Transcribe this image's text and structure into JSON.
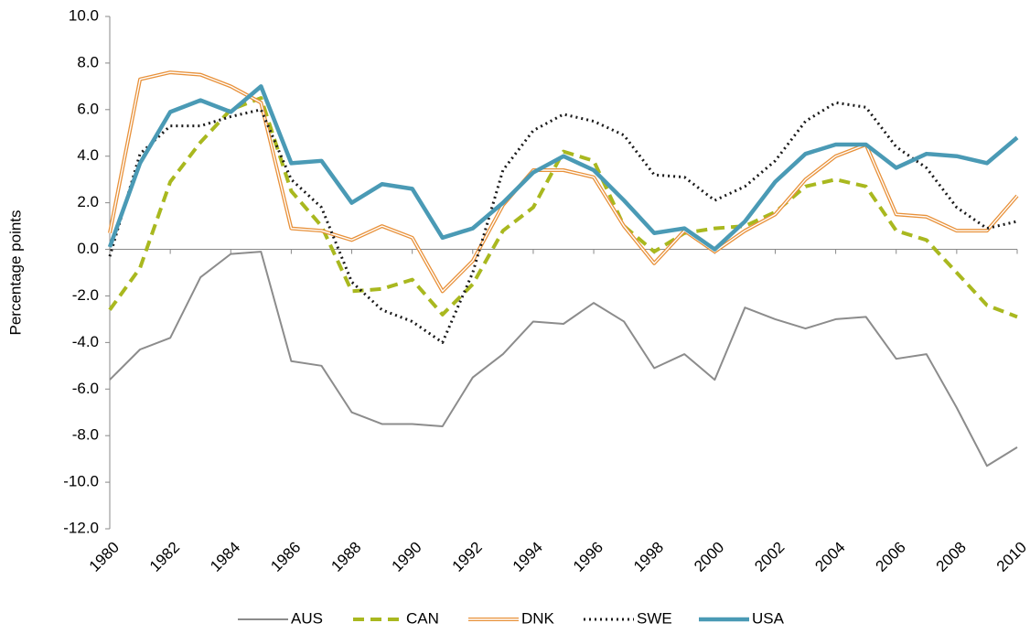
{
  "chart_data": {
    "type": "line",
    "y_label": "Percentage points",
    "x": [
      1980,
      1981,
      1982,
      1983,
      1984,
      1985,
      1986,
      1987,
      1988,
      1989,
      1990,
      1991,
      1992,
      1993,
      1994,
      1995,
      1996,
      1997,
      1998,
      1999,
      2000,
      2001,
      2002,
      2003,
      2004,
      2005,
      2006,
      2007,
      2008,
      2009,
      2010
    ],
    "xlim": [
      1980,
      2010
    ],
    "xticks": [
      1980,
      1982,
      1984,
      1986,
      1988,
      1990,
      1992,
      1994,
      1996,
      1998,
      2000,
      2002,
      2004,
      2006,
      2008,
      2010
    ],
    "ylim": [
      -12,
      10
    ],
    "yticks": [
      {
        "value": -12,
        "label": "-12.0"
      },
      {
        "value": -10,
        "label": "-10.0"
      },
      {
        "value": -8,
        "label": "-8.0"
      },
      {
        "value": -6,
        "label": "-6.0"
      },
      {
        "value": -4,
        "label": "-4.0"
      },
      {
        "value": -2,
        "label": "-2.0"
      },
      {
        "value": 0,
        "label": "0.0"
      },
      {
        "value": 2,
        "label": "2.0"
      },
      {
        "value": 4,
        "label": "4.0"
      },
      {
        "value": 6,
        "label": "6.0"
      },
      {
        "value": 8,
        "label": "8.0"
      },
      {
        "value": 10,
        "label": "10.0"
      }
    ],
    "legend": "bottom",
    "series": [
      {
        "name": "AUS",
        "color": "#8c8c8c",
        "style": "solid",
        "values": [
          -5.6,
          -4.3,
          -3.8,
          -1.2,
          -0.2,
          -0.1,
          -4.8,
          -5.0,
          -7.0,
          -7.5,
          -7.5,
          -7.6,
          -5.5,
          -4.5,
          -3.1,
          -3.2,
          -2.3,
          -3.1,
          -5.1,
          -4.5,
          -5.6,
          -2.5,
          -3.0,
          -3.4,
          -3.0,
          -2.9,
          -4.7,
          -4.5,
          -6.8,
          -9.3,
          -8.5
        ]
      },
      {
        "name": "CAN",
        "color": "#a9b81f",
        "style": "dashed",
        "values": [
          -2.6,
          -0.8,
          2.9,
          4.6,
          6.0,
          6.5,
          2.5,
          1.0,
          -1.8,
          -1.7,
          -1.3,
          -2.8,
          -1.5,
          0.8,
          1.8,
          4.2,
          3.8,
          1.0,
          -0.1,
          0.7,
          0.9,
          1.0,
          1.6,
          2.7,
          3.0,
          2.7,
          0.8,
          0.4,
          -1.0,
          -2.4,
          -2.9
        ]
      },
      {
        "name": "DNK",
        "color": "#e8913a",
        "style": "double",
        "values": [
          0.7,
          7.3,
          7.6,
          7.5,
          7.0,
          6.3,
          0.9,
          0.8,
          0.4,
          1.0,
          0.5,
          -1.8,
          -0.5,
          1.9,
          3.4,
          3.4,
          3.1,
          1.0,
          -0.6,
          0.8,
          -0.1,
          0.8,
          1.5,
          3.0,
          4.0,
          4.5,
          1.5,
          1.4,
          0.8,
          0.8,
          2.3
        ]
      },
      {
        "name": "SWE",
        "color": "#1a1a1a",
        "style": "dotted",
        "values": [
          -0.3,
          4.1,
          5.3,
          5.3,
          5.7,
          6.0,
          3.0,
          1.8,
          -1.4,
          -2.6,
          -3.1,
          -4.0,
          -1.0,
          3.4,
          5.1,
          5.8,
          5.5,
          4.9,
          3.2,
          3.1,
          2.1,
          2.7,
          3.8,
          5.5,
          6.3,
          6.1,
          4.4,
          3.5,
          1.8,
          0.9,
          1.2
        ]
      },
      {
        "name": "USA",
        "color": "#4a9ab5",
        "style": "thick",
        "values": [
          0.1,
          3.7,
          5.9,
          6.4,
          5.9,
          7.0,
          3.7,
          3.8,
          2.0,
          2.8,
          2.6,
          0.5,
          0.9,
          2.0,
          3.3,
          4.0,
          3.4,
          2.1,
          0.7,
          0.9,
          0.0,
          1.2,
          2.9,
          4.1,
          4.5,
          4.5,
          3.5,
          4.1,
          4.0,
          3.7,
          4.8
        ]
      }
    ]
  }
}
